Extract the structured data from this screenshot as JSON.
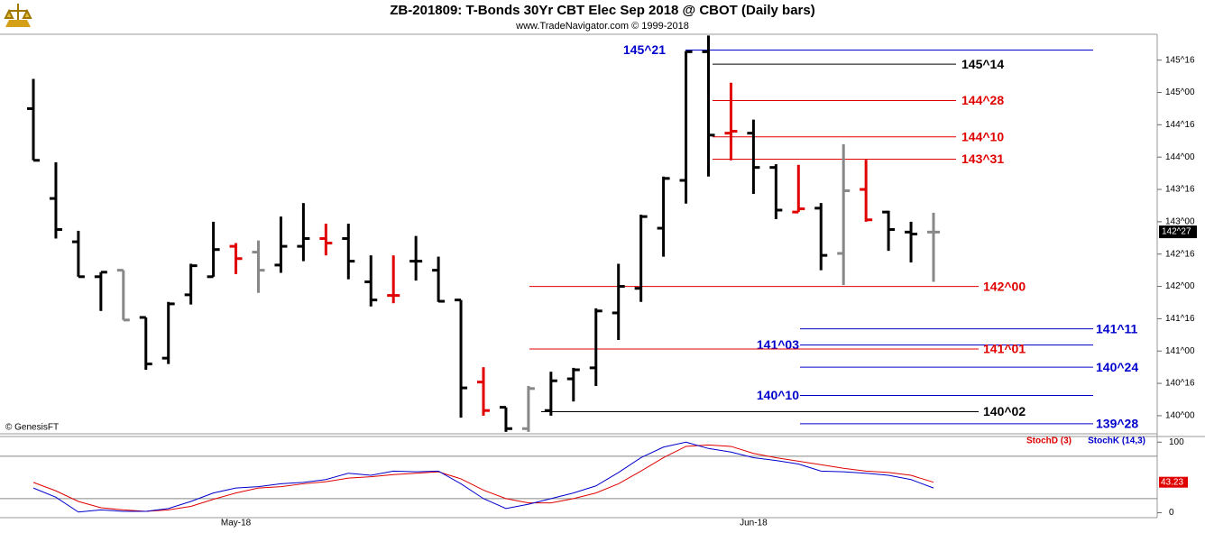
{
  "chart_data": [
    {
      "type": "ohlc",
      "title": "ZB-201809:  T-Bonds 30Yr CBT Elec Sep 2018 @ CBOT  (Daily bars)",
      "subtitle": "www.TradeNavigator.com © 1999-2018",
      "footer": "© GenesisFT",
      "categories": [
        null,
        null,
        null,
        null,
        null,
        null,
        null,
        null,
        null,
        "May-18",
        null,
        null,
        null,
        null,
        null,
        null,
        null,
        null,
        null,
        null,
        null,
        null,
        null,
        null,
        null,
        null,
        null,
        null,
        null,
        null,
        null,
        null,
        "Jun-18",
        null,
        null,
        null,
        null,
        null,
        null,
        null,
        null
      ],
      "open": [
        144.75,
        143.36,
        142.69,
        142.15,
        142.25,
        141.52,
        140.89,
        141.87,
        142.15,
        142.62,
        142.53,
        142.33,
        142.62,
        142.74,
        142.74,
        142.07,
        141.86,
        142.39,
        142.25,
        141.79,
        140.52,
        140.13,
        139.8,
        140.08,
        140.57,
        140.74,
        141.59,
        141.97,
        142.9,
        143.64,
        145.63,
        144.37,
        144.37,
        143.84,
        143.15,
        143.21,
        142.51,
        143.5,
        143.15,
        142.84,
        142.84
      ],
      "high": [
        145.21,
        143.92,
        142.86,
        142.22,
        142.25,
        141.52,
        141.76,
        142.35,
        143.0,
        142.67,
        142.71,
        143.08,
        143.29,
        142.97,
        142.97,
        142.48,
        142.48,
        142.78,
        142.46,
        141.79,
        140.75,
        140.13,
        140.46,
        140.68,
        140.74,
        141.66,
        142.35,
        143.11,
        143.7,
        145.64,
        145.88,
        145.15,
        144.58,
        143.89,
        143.88,
        143.29,
        144.2,
        143.96,
        143.17,
        143.0,
        143.14
      ],
      "low": [
        143.95,
        142.74,
        142.15,
        141.62,
        141.48,
        140.71,
        140.8,
        141.72,
        142.15,
        142.19,
        141.9,
        142.21,
        142.39,
        142.48,
        142.11,
        141.69,
        141.74,
        142.09,
        141.76,
        139.97,
        140.0,
        139.75,
        139.75,
        140.0,
        140.22,
        140.46,
        141.17,
        141.76,
        142.46,
        143.28,
        143.7,
        143.95,
        143.43,
        143.04,
        143.15,
        142.25,
        142.02,
        143.0,
        142.55,
        142.37,
        142.07
      ],
      "close": [
        143.95,
        142.88,
        142.15,
        142.22,
        141.48,
        140.8,
        141.73,
        142.32,
        142.57,
        142.43,
        142.25,
        142.62,
        142.74,
        142.67,
        142.39,
        141.79,
        141.86,
        142.39,
        141.77,
        140.43,
        140.08,
        139.8,
        140.42,
        140.54,
        140.71,
        141.62,
        142.0,
        143.08,
        143.67,
        145.63,
        144.34,
        144.4,
        143.84,
        143.18,
        143.2,
        142.48,
        143.48,
        143.03,
        142.88,
        142.81,
        142.84
      ],
      "colors": [
        "#000000",
        "#000000",
        "#000000",
        "#000000",
        "#888888",
        "#000000",
        "#000000",
        "#000000",
        "#000000",
        "#e00000",
        "#888888",
        "#000000",
        "#000000",
        "#e00000",
        "#000000",
        "#000000",
        "#e00000",
        "#000000",
        "#000000",
        "#000000",
        "#e00000",
        "#000000",
        "#888888",
        "#000000",
        "#000000",
        "#000000",
        "#000000",
        "#000000",
        "#000000",
        "#000000",
        "#000000",
        "#e00000",
        "#000000",
        "#000000",
        "#e00000",
        "#000000",
        "#888888",
        "#e00000",
        "#000000",
        "#000000",
        "#888888"
      ],
      "ylim": [
        139.72,
        145.9
      ],
      "yticks": [
        {
          "value": 140,
          "label": "140^00"
        },
        {
          "value": 140.5,
          "label": "140^16"
        },
        {
          "value": 141,
          "label": "141^00"
        },
        {
          "value": 141.5,
          "label": "141^16"
        },
        {
          "value": 142,
          "label": "142^00"
        },
        {
          "value": 142.5,
          "label": "142^16"
        },
        {
          "value": 143,
          "label": "143^00"
        },
        {
          "value": 143.5,
          "label": "143^16"
        },
        {
          "value": 144,
          "label": "144^00"
        },
        {
          "value": 144.5,
          "label": "144^16"
        },
        {
          "value": 145,
          "label": "145^00"
        },
        {
          "value": 145.5,
          "label": "145^16"
        }
      ],
      "last_price": {
        "value": 142.84375,
        "label": "142^27"
      },
      "levels": [
        {
          "value": 145.65625,
          "label": "145^21",
          "color": "#0000cc"
        },
        {
          "value": 145.4375,
          "label": "145^14",
          "color": "#000000"
        },
        {
          "value": 144.875,
          "label": "144^28",
          "color": "#e00000"
        },
        {
          "value": 144.3125,
          "label": "144^10",
          "color": "#e00000"
        },
        {
          "value": 143.96875,
          "label": "143^31",
          "color": "#e00000"
        },
        {
          "value": 142,
          "label": "142^00",
          "color": "#e00000"
        },
        {
          "value": 141.34375,
          "label": "141^11",
          "color": "#0000cc"
        },
        {
          "value": 141.09375,
          "label": "141^03",
          "color": "#0000cc"
        },
        {
          "value": 141.03125,
          "label": "141^01",
          "color": "#e00000"
        },
        {
          "value": 140.75,
          "label": "140^24",
          "color": "#0000cc"
        },
        {
          "value": 140.3125,
          "label": "140^10",
          "color": "#0000cc"
        },
        {
          "value": 140.0625,
          "label": "140^02",
          "color": "#000000"
        },
        {
          "value": 139.875,
          "label": "139^28",
          "color": "#0000cc"
        }
      ]
    },
    {
      "type": "line",
      "series": [
        {
          "name": "StochD (3)",
          "color": "#e00000",
          "values": [
            43,
            31,
            16,
            7,
            4,
            2,
            4,
            9,
            19,
            28,
            35,
            37,
            41,
            44,
            49,
            51,
            54,
            56,
            58,
            48,
            32,
            20,
            14,
            14,
            20,
            28,
            41,
            59,
            78,
            94,
            96,
            94,
            84,
            78,
            73,
            68,
            63,
            59,
            57,
            53,
            43.23
          ]
        },
        {
          "name": "StochK (14,3)",
          "color": "#0000cc",
          "values": [
            35,
            22,
            1,
            4,
            2,
            2,
            6,
            16,
            28,
            35,
            37,
            41,
            43,
            47,
            56,
            53,
            59,
            58,
            59,
            41,
            20,
            6,
            12,
            20,
            28,
            38,
            57,
            78,
            93,
            100,
            91,
            86,
            78,
            74,
            69,
            59,
            58,
            56,
            53,
            47,
            35
          ]
        }
      ],
      "ylim": [
        -7,
        108
      ],
      "yticks": [
        0,
        100
      ],
      "hlines": [
        80,
        20
      ]
    }
  ]
}
